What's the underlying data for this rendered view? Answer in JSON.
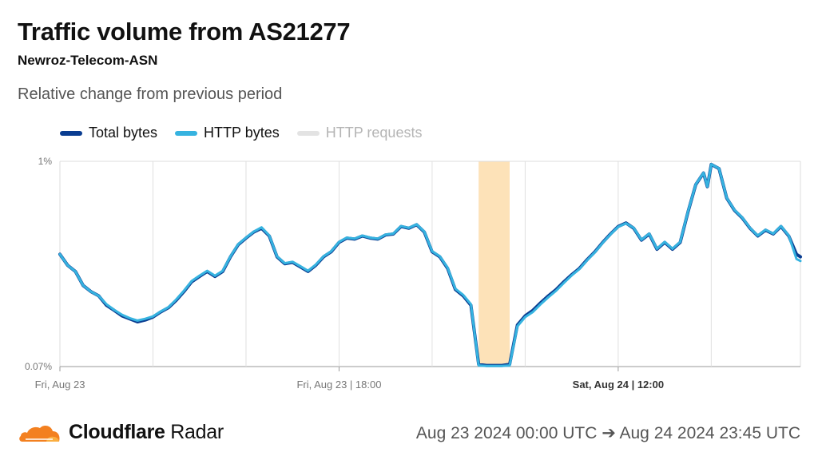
{
  "header": {
    "title": "Traffic volume from AS21277",
    "subtitle": "Newroz-Telecom-ASN",
    "description": "Relative change from previous period"
  },
  "legend": [
    {
      "label": "Total bytes",
      "color": "#0a3d91",
      "muted": false
    },
    {
      "label": "HTTP bytes",
      "color": "#36b3e0",
      "muted": false
    },
    {
      "label": "HTTP requests",
      "color": "#e3e3e3",
      "muted": true
    }
  ],
  "footer": {
    "brand_main": "Cloudflare",
    "brand_sub": "Radar",
    "date_range": "Aug 23 2024 00:00 UTC ➔ Aug 24 2024 23:45 UTC",
    "logo_icon": "cloudflare-cloud-icon"
  },
  "chart_data": {
    "type": "line",
    "y_scale": "log",
    "ylim": [
      0.07,
      1
    ],
    "y_tick_labels": [
      {
        "value": 0.07,
        "label": "0.07%"
      },
      {
        "value": 1,
        "label": "1%"
      }
    ],
    "xlim": [
      "2024-08-23 00:00",
      "2024-08-24 23:45"
    ],
    "x_tick_labels": [
      {
        "t": "2024-08-23 00:00",
        "label": "Fri, Aug 23",
        "bold": false
      },
      {
        "t": "2024-08-23 18:00",
        "label": "Fri, Aug 23 | 18:00",
        "bold": false
      },
      {
        "t": "2024-08-24 12:00",
        "label": "Sat, Aug 24 | 12:00",
        "bold": true
      }
    ],
    "grid_times": [
      "2024-08-23 06:00",
      "2024-08-23 12:00",
      "2024-08-23 18:00",
      "2024-08-24 00:00",
      "2024-08-24 06:00",
      "2024-08-24 12:00",
      "2024-08-24 18:00"
    ],
    "shaded_interval": {
      "start": "2024-08-24 03:00",
      "end": "2024-08-24 05:00",
      "color": "#fde2b8"
    },
    "grid": true,
    "series": [
      {
        "name": "Total bytes",
        "color": "#0a3d91",
        "points": [
          [
            "2024-08-23 00:00",
            0.3
          ],
          [
            "2024-08-23 00:30",
            0.26
          ],
          [
            "2024-08-23 01:00",
            0.24
          ],
          [
            "2024-08-23 01:30",
            0.2
          ],
          [
            "2024-08-23 02:00",
            0.185
          ],
          [
            "2024-08-23 02:30",
            0.175
          ],
          [
            "2024-08-23 03:00",
            0.155
          ],
          [
            "2024-08-23 03:30",
            0.145
          ],
          [
            "2024-08-23 04:00",
            0.135
          ],
          [
            "2024-08-23 04:30",
            0.13
          ],
          [
            "2024-08-23 05:00",
            0.125
          ],
          [
            "2024-08-23 05:30",
            0.128
          ],
          [
            "2024-08-23 06:00",
            0.133
          ],
          [
            "2024-08-23 06:30",
            0.142
          ],
          [
            "2024-08-23 07:00",
            0.15
          ],
          [
            "2024-08-23 07:30",
            0.165
          ],
          [
            "2024-08-23 08:00",
            0.185
          ],
          [
            "2024-08-23 08:30",
            0.21
          ],
          [
            "2024-08-23 09:00",
            0.225
          ],
          [
            "2024-08-23 09:30",
            0.24
          ],
          [
            "2024-08-23 10:00",
            0.225
          ],
          [
            "2024-08-23 10:30",
            0.24
          ],
          [
            "2024-08-23 11:00",
            0.29
          ],
          [
            "2024-08-23 11:30",
            0.34
          ],
          [
            "2024-08-23 12:00",
            0.37
          ],
          [
            "2024-08-23 12:30",
            0.4
          ],
          [
            "2024-08-23 13:00",
            0.42
          ],
          [
            "2024-08-23 13:30",
            0.38
          ],
          [
            "2024-08-23 14:00",
            0.29
          ],
          [
            "2024-08-23 14:30",
            0.265
          ],
          [
            "2024-08-23 15:00",
            0.27
          ],
          [
            "2024-08-23 15:30",
            0.255
          ],
          [
            "2024-08-23 16:00",
            0.24
          ],
          [
            "2024-08-23 16:30",
            0.26
          ],
          [
            "2024-08-23 17:00",
            0.29
          ],
          [
            "2024-08-23 17:30",
            0.31
          ],
          [
            "2024-08-23 18:00",
            0.35
          ],
          [
            "2024-08-23 18:30",
            0.37
          ],
          [
            "2024-08-23 19:00",
            0.365
          ],
          [
            "2024-08-23 19:30",
            0.38
          ],
          [
            "2024-08-23 20:00",
            0.37
          ],
          [
            "2024-08-23 20:30",
            0.365
          ],
          [
            "2024-08-23 21:00",
            0.385
          ],
          [
            "2024-08-23 21:30",
            0.39
          ],
          [
            "2024-08-23 22:00",
            0.43
          ],
          [
            "2024-08-23 22:30",
            0.42
          ],
          [
            "2024-08-23 23:00",
            0.44
          ],
          [
            "2024-08-23 23:30",
            0.4
          ],
          [
            "2024-08-24 00:00",
            0.31
          ],
          [
            "2024-08-24 00:30",
            0.29
          ],
          [
            "2024-08-24 01:00",
            0.25
          ],
          [
            "2024-08-24 01:30",
            0.19
          ],
          [
            "2024-08-24 02:00",
            0.175
          ],
          [
            "2024-08-24 02:30",
            0.155
          ],
          [
            "2024-08-24 03:00",
            0.072
          ],
          [
            "2024-08-24 03:30",
            0.071
          ],
          [
            "2024-08-24 04:00",
            0.071
          ],
          [
            "2024-08-24 04:30",
            0.071
          ],
          [
            "2024-08-24 05:00",
            0.072
          ],
          [
            "2024-08-24 05:30",
            0.12
          ],
          [
            "2024-08-24 06:00",
            0.135
          ],
          [
            "2024-08-24 06:30",
            0.145
          ],
          [
            "2024-08-24 07:00",
            0.16
          ],
          [
            "2024-08-24 07:30",
            0.175
          ],
          [
            "2024-08-24 08:00",
            0.19
          ],
          [
            "2024-08-24 08:30",
            0.21
          ],
          [
            "2024-08-24 09:00",
            0.23
          ],
          [
            "2024-08-24 09:30",
            0.25
          ],
          [
            "2024-08-24 10:00",
            0.28
          ],
          [
            "2024-08-24 10:30",
            0.31
          ],
          [
            "2024-08-24 11:00",
            0.35
          ],
          [
            "2024-08-24 11:30",
            0.39
          ],
          [
            "2024-08-24 12:00",
            0.43
          ],
          [
            "2024-08-24 12:30",
            0.45
          ],
          [
            "2024-08-24 13:00",
            0.42
          ],
          [
            "2024-08-24 13:30",
            0.36
          ],
          [
            "2024-08-24 14:00",
            0.39
          ],
          [
            "2024-08-24 14:30",
            0.32
          ],
          [
            "2024-08-24 15:00",
            0.35
          ],
          [
            "2024-08-24 15:30",
            0.32
          ],
          [
            "2024-08-24 16:00",
            0.35
          ],
          [
            "2024-08-24 16:30",
            0.52
          ],
          [
            "2024-08-24 17:00",
            0.74
          ],
          [
            "2024-08-24 17:30",
            0.86
          ],
          [
            "2024-08-24 17:45",
            0.72
          ],
          [
            "2024-08-24 18:00",
            0.96
          ],
          [
            "2024-08-24 18:30",
            0.91
          ],
          [
            "2024-08-24 19:00",
            0.62
          ],
          [
            "2024-08-24 19:30",
            0.53
          ],
          [
            "2024-08-24 20:00",
            0.48
          ],
          [
            "2024-08-24 20:30",
            0.42
          ],
          [
            "2024-08-24 21:00",
            0.38
          ],
          [
            "2024-08-24 21:30",
            0.41
          ],
          [
            "2024-08-24 22:00",
            0.39
          ],
          [
            "2024-08-24 22:30",
            0.43
          ],
          [
            "2024-08-24 23:00",
            0.38
          ],
          [
            "2024-08-24 23:30",
            0.3
          ],
          [
            "2024-08-24 23:45",
            0.29
          ]
        ]
      },
      {
        "name": "HTTP bytes",
        "color": "#36b3e0",
        "points": [
          [
            "2024-08-23 00:00",
            0.3
          ],
          [
            "2024-08-23 00:30",
            0.26
          ],
          [
            "2024-08-23 01:00",
            0.24
          ],
          [
            "2024-08-23 01:30",
            0.2
          ],
          [
            "2024-08-23 02:00",
            0.185
          ],
          [
            "2024-08-23 02:30",
            0.175
          ],
          [
            "2024-08-23 03:00",
            0.157
          ],
          [
            "2024-08-23 03:30",
            0.146
          ],
          [
            "2024-08-23 04:00",
            0.137
          ],
          [
            "2024-08-23 04:30",
            0.131
          ],
          [
            "2024-08-23 05:00",
            0.127
          ],
          [
            "2024-08-23 05:30",
            0.13
          ],
          [
            "2024-08-23 06:00",
            0.134
          ],
          [
            "2024-08-23 06:30",
            0.143
          ],
          [
            "2024-08-23 07:00",
            0.151
          ],
          [
            "2024-08-23 07:30",
            0.167
          ],
          [
            "2024-08-23 08:00",
            0.187
          ],
          [
            "2024-08-23 08:30",
            0.212
          ],
          [
            "2024-08-23 09:00",
            0.227
          ],
          [
            "2024-08-23 09:30",
            0.242
          ],
          [
            "2024-08-23 10:00",
            0.227
          ],
          [
            "2024-08-23 10:30",
            0.242
          ],
          [
            "2024-08-23 11:00",
            0.292
          ],
          [
            "2024-08-23 11:30",
            0.342
          ],
          [
            "2024-08-23 12:00",
            0.372
          ],
          [
            "2024-08-23 12:30",
            0.402
          ],
          [
            "2024-08-23 13:00",
            0.425
          ],
          [
            "2024-08-23 13:30",
            0.382
          ],
          [
            "2024-08-23 14:00",
            0.292
          ],
          [
            "2024-08-23 14:30",
            0.267
          ],
          [
            "2024-08-23 15:00",
            0.272
          ],
          [
            "2024-08-23 15:30",
            0.257
          ],
          [
            "2024-08-23 16:00",
            0.242
          ],
          [
            "2024-08-23 16:30",
            0.262
          ],
          [
            "2024-08-23 17:00",
            0.292
          ],
          [
            "2024-08-23 17:30",
            0.312
          ],
          [
            "2024-08-23 18:00",
            0.352
          ],
          [
            "2024-08-23 18:30",
            0.372
          ],
          [
            "2024-08-23 19:00",
            0.367
          ],
          [
            "2024-08-23 19:30",
            0.382
          ],
          [
            "2024-08-23 20:00",
            0.372
          ],
          [
            "2024-08-23 20:30",
            0.367
          ],
          [
            "2024-08-23 21:00",
            0.387
          ],
          [
            "2024-08-23 21:30",
            0.392
          ],
          [
            "2024-08-23 22:00",
            0.432
          ],
          [
            "2024-08-23 22:30",
            0.422
          ],
          [
            "2024-08-23 23:00",
            0.442
          ],
          [
            "2024-08-23 23:30",
            0.402
          ],
          [
            "2024-08-24 00:00",
            0.312
          ],
          [
            "2024-08-24 00:30",
            0.292
          ],
          [
            "2024-08-24 01:00",
            0.252
          ],
          [
            "2024-08-24 01:30",
            0.192
          ],
          [
            "2024-08-24 02:00",
            0.177
          ],
          [
            "2024-08-24 02:30",
            0.157
          ],
          [
            "2024-08-24 03:00",
            0.071
          ],
          [
            "2024-08-24 03:30",
            0.0705
          ],
          [
            "2024-08-24 04:00",
            0.0705
          ],
          [
            "2024-08-24 04:30",
            0.0705
          ],
          [
            "2024-08-24 05:00",
            0.071
          ],
          [
            "2024-08-24 05:30",
            0.118
          ],
          [
            "2024-08-24 06:00",
            0.133
          ],
          [
            "2024-08-24 06:30",
            0.142
          ],
          [
            "2024-08-24 07:00",
            0.157
          ],
          [
            "2024-08-24 07:30",
            0.172
          ],
          [
            "2024-08-24 08:00",
            0.187
          ],
          [
            "2024-08-24 08:30",
            0.207
          ],
          [
            "2024-08-24 09:00",
            0.228
          ],
          [
            "2024-08-24 09:30",
            0.248
          ],
          [
            "2024-08-24 10:00",
            0.278
          ],
          [
            "2024-08-24 10:30",
            0.308
          ],
          [
            "2024-08-24 11:00",
            0.348
          ],
          [
            "2024-08-24 11:30",
            0.388
          ],
          [
            "2024-08-24 12:00",
            0.428
          ],
          [
            "2024-08-24 12:30",
            0.448
          ],
          [
            "2024-08-24 13:00",
            0.422
          ],
          [
            "2024-08-24 13:30",
            0.362
          ],
          [
            "2024-08-24 14:00",
            0.392
          ],
          [
            "2024-08-24 14:30",
            0.322
          ],
          [
            "2024-08-24 15:00",
            0.352
          ],
          [
            "2024-08-24 15:30",
            0.322
          ],
          [
            "2024-08-24 16:00",
            0.352
          ],
          [
            "2024-08-24 16:30",
            0.522
          ],
          [
            "2024-08-24 17:00",
            0.742
          ],
          [
            "2024-08-24 17:30",
            0.862
          ],
          [
            "2024-08-24 17:45",
            0.722
          ],
          [
            "2024-08-24 18:00",
            0.962
          ],
          [
            "2024-08-24 18:30",
            0.912
          ],
          [
            "2024-08-24 19:00",
            0.622
          ],
          [
            "2024-08-24 19:30",
            0.532
          ],
          [
            "2024-08-24 20:00",
            0.482
          ],
          [
            "2024-08-24 20:30",
            0.422
          ],
          [
            "2024-08-24 21:00",
            0.382
          ],
          [
            "2024-08-24 21:30",
            0.412
          ],
          [
            "2024-08-24 22:00",
            0.392
          ],
          [
            "2024-08-24 22:30",
            0.432
          ],
          [
            "2024-08-24 23:00",
            0.382
          ],
          [
            "2024-08-24 23:30",
            0.282
          ],
          [
            "2024-08-24 23:45",
            0.275
          ]
        ]
      }
    ]
  }
}
